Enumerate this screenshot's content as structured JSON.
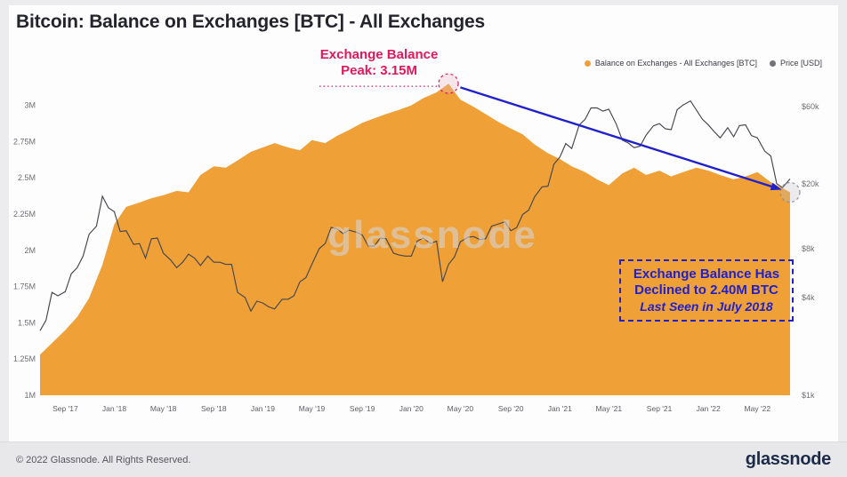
{
  "header": {
    "title": "Bitcoin: Balance on Exchanges [BTC] - All Exchanges"
  },
  "legend": [
    {
      "label": "Balance on Exchanges - All Exchanges [BTC]",
      "color": "#efa137"
    },
    {
      "label": "Price [USD]",
      "color": "#72727c"
    }
  ],
  "watermark": "glassnode",
  "annotations": {
    "peak": {
      "line1": "Exchange Balance",
      "line2": "Peak: 3.15M",
      "x": 2020.25,
      "value_m": 3.15,
      "color": "#e0185c"
    },
    "decline": {
      "line1": "Exchange Balance Has",
      "line2": "Declined to 2.40M BTC",
      "line3": "Last Seen in July 2018",
      "x": 2022.55,
      "value_m": 2.4,
      "color": "#2121cc"
    }
  },
  "footer": {
    "copyright": "© 2022 Glassnode. All Rights Reserved.",
    "logo": "glassnode"
  },
  "chart_data": {
    "type": "area+line",
    "title": "Bitcoin: Balance on Exchanges [BTC] - All Exchanges",
    "grid": false,
    "legend_position": "top-right",
    "x_range": [
      2017.5,
      2022.58
    ],
    "x_ticks": [
      {
        "label": "Sep '17",
        "x": 2017.67
      },
      {
        "label": "Jan '18",
        "x": 2018.0
      },
      {
        "label": "May '18",
        "x": 2018.33
      },
      {
        "label": "Sep '18",
        "x": 2018.67
      },
      {
        "label": "Jan '19",
        "x": 2019.0
      },
      {
        "label": "May '19",
        "x": 2019.33
      },
      {
        "label": "Sep '19",
        "x": 2019.67
      },
      {
        "label": "Jan '20",
        "x": 2020.0
      },
      {
        "label": "May '20",
        "x": 2020.33
      },
      {
        "label": "Sep '20",
        "x": 2020.67
      },
      {
        "label": "Jan '21",
        "x": 2021.0
      },
      {
        "label": "May '21",
        "x": 2021.33
      },
      {
        "label": "Sep '21",
        "x": 2021.67
      },
      {
        "label": "Jan '22",
        "x": 2022.0
      },
      {
        "label": "May '22",
        "x": 2022.33
      }
    ],
    "left_axis": {
      "unit": "M BTC",
      "min_m": 1.0,
      "max_m": 3.2,
      "ticks": [
        {
          "label": "3M",
          "value_m": 3.0
        },
        {
          "label": "2.75M",
          "value_m": 2.75
        },
        {
          "label": "2.5M",
          "value_m": 2.5
        },
        {
          "label": "2.25M",
          "value_m": 2.25
        },
        {
          "label": "2M",
          "value_m": 2.0
        },
        {
          "label": "1.75M",
          "value_m": 1.75
        },
        {
          "label": "1.5M",
          "value_m": 1.5
        },
        {
          "label": "1.25M",
          "value_m": 1.25
        },
        {
          "label": "1M",
          "value_m": 1.0
        }
      ]
    },
    "right_axis": {
      "unit": "USD",
      "scale": "log",
      "min": 1000,
      "max": 92000,
      "ticks": [
        {
          "label": "$60k",
          "value": 60000
        },
        {
          "label": "$20k",
          "value": 20000
        },
        {
          "label": "$8k",
          "value": 8000
        },
        {
          "label": "$4k",
          "value": 4000
        },
        {
          "label": "$1k",
          "value": 1000
        }
      ]
    },
    "series": [
      {
        "name": "Balance on Exchanges - All Exchanges [BTC]",
        "type": "area",
        "axis": "left",
        "color": "#efa137",
        "unit": "M BTC",
        "points": [
          [
            2017.5,
            1.28
          ],
          [
            2017.58,
            1.36
          ],
          [
            2017.67,
            1.45
          ],
          [
            2017.75,
            1.54
          ],
          [
            2017.83,
            1.67
          ],
          [
            2017.92,
            1.9
          ],
          [
            2018.0,
            2.18
          ],
          [
            2018.08,
            2.3
          ],
          [
            2018.17,
            2.33
          ],
          [
            2018.25,
            2.36
          ],
          [
            2018.33,
            2.38
          ],
          [
            2018.42,
            2.41
          ],
          [
            2018.5,
            2.4
          ],
          [
            2018.58,
            2.52
          ],
          [
            2018.67,
            2.58
          ],
          [
            2018.75,
            2.57
          ],
          [
            2018.83,
            2.62
          ],
          [
            2018.92,
            2.68
          ],
          [
            2019.0,
            2.71
          ],
          [
            2019.08,
            2.74
          ],
          [
            2019.17,
            2.71
          ],
          [
            2019.25,
            2.69
          ],
          [
            2019.33,
            2.76
          ],
          [
            2019.42,
            2.74
          ],
          [
            2019.5,
            2.79
          ],
          [
            2019.58,
            2.83
          ],
          [
            2019.67,
            2.88
          ],
          [
            2019.75,
            2.91
          ],
          [
            2019.83,
            2.94
          ],
          [
            2019.92,
            2.97
          ],
          [
            2020.0,
            3.0
          ],
          [
            2020.08,
            3.05
          ],
          [
            2020.17,
            3.09
          ],
          [
            2020.25,
            3.15
          ],
          [
            2020.33,
            3.04
          ],
          [
            2020.42,
            2.99
          ],
          [
            2020.5,
            2.94
          ],
          [
            2020.58,
            2.89
          ],
          [
            2020.67,
            2.84
          ],
          [
            2020.75,
            2.8
          ],
          [
            2020.83,
            2.73
          ],
          [
            2020.92,
            2.67
          ],
          [
            2021.0,
            2.63
          ],
          [
            2021.08,
            2.58
          ],
          [
            2021.17,
            2.54
          ],
          [
            2021.25,
            2.49
          ],
          [
            2021.33,
            2.45
          ],
          [
            2021.42,
            2.53
          ],
          [
            2021.5,
            2.57
          ],
          [
            2021.58,
            2.52
          ],
          [
            2021.67,
            2.55
          ],
          [
            2021.75,
            2.51
          ],
          [
            2021.83,
            2.54
          ],
          [
            2021.92,
            2.57
          ],
          [
            2022.0,
            2.55
          ],
          [
            2022.08,
            2.52
          ],
          [
            2022.17,
            2.49
          ],
          [
            2022.25,
            2.51
          ],
          [
            2022.33,
            2.54
          ],
          [
            2022.42,
            2.47
          ],
          [
            2022.5,
            2.43
          ],
          [
            2022.55,
            2.4
          ]
        ]
      },
      {
        "name": "Price [USD]",
        "type": "line",
        "axis": "right",
        "color": "#46464e",
        "unit": "USD",
        "points": [
          [
            2017.5,
            2500
          ],
          [
            2017.54,
            2900
          ],
          [
            2017.58,
            4300
          ],
          [
            2017.62,
            4100
          ],
          [
            2017.67,
            4350
          ],
          [
            2017.71,
            5600
          ],
          [
            2017.75,
            6100
          ],
          [
            2017.79,
            7200
          ],
          [
            2017.83,
            9800
          ],
          [
            2017.88,
            11000
          ],
          [
            2017.92,
            16800
          ],
          [
            2017.96,
            14300
          ],
          [
            2018.0,
            13500
          ],
          [
            2018.04,
            10200
          ],
          [
            2018.08,
            10300
          ],
          [
            2018.13,
            8500
          ],
          [
            2018.17,
            8600
          ],
          [
            2018.21,
            7000
          ],
          [
            2018.25,
            9200
          ],
          [
            2018.29,
            9300
          ],
          [
            2018.33,
            7500
          ],
          [
            2018.38,
            6800
          ],
          [
            2018.42,
            6100
          ],
          [
            2018.46,
            6600
          ],
          [
            2018.5,
            7400
          ],
          [
            2018.54,
            7000
          ],
          [
            2018.58,
            6300
          ],
          [
            2018.63,
            7200
          ],
          [
            2018.67,
            6600
          ],
          [
            2018.71,
            6600
          ],
          [
            2018.75,
            6400
          ],
          [
            2018.79,
            6400
          ],
          [
            2018.83,
            4300
          ],
          [
            2018.88,
            4000
          ],
          [
            2018.92,
            3300
          ],
          [
            2018.96,
            3800
          ],
          [
            2019.0,
            3700
          ],
          [
            2019.04,
            3500
          ],
          [
            2019.08,
            3400
          ],
          [
            2019.13,
            3900
          ],
          [
            2019.17,
            3900
          ],
          [
            2019.21,
            4100
          ],
          [
            2019.25,
            5000
          ],
          [
            2019.29,
            5300
          ],
          [
            2019.33,
            6400
          ],
          [
            2019.38,
            8000
          ],
          [
            2019.42,
            8600
          ],
          [
            2019.46,
            10800
          ],
          [
            2019.5,
            10600
          ],
          [
            2019.54,
            9900
          ],
          [
            2019.58,
            10400
          ],
          [
            2019.63,
            10100
          ],
          [
            2019.67,
            9700
          ],
          [
            2019.71,
            8300
          ],
          [
            2019.75,
            8300
          ],
          [
            2019.79,
            9300
          ],
          [
            2019.83,
            9200
          ],
          [
            2019.88,
            7500
          ],
          [
            2019.92,
            7300
          ],
          [
            2019.96,
            7200
          ],
          [
            2020.0,
            7200
          ],
          [
            2020.04,
            8900
          ],
          [
            2020.08,
            9300
          ],
          [
            2020.13,
            8600
          ],
          [
            2020.17,
            8900
          ],
          [
            2020.21,
            5000
          ],
          [
            2020.25,
            6400
          ],
          [
            2020.29,
            7100
          ],
          [
            2020.33,
            8800
          ],
          [
            2020.38,
            9400
          ],
          [
            2020.42,
            9500
          ],
          [
            2020.46,
            9100
          ],
          [
            2020.5,
            9200
          ],
          [
            2020.54,
            11000
          ],
          [
            2020.58,
            11300
          ],
          [
            2020.63,
            11700
          ],
          [
            2020.67,
            10300
          ],
          [
            2020.71,
            10800
          ],
          [
            2020.75,
            13000
          ],
          [
            2020.79,
            13800
          ],
          [
            2020.83,
            16700
          ],
          [
            2020.88,
            19200
          ],
          [
            2020.92,
            19400
          ],
          [
            2020.96,
            26500
          ],
          [
            2021.0,
            29300
          ],
          [
            2021.04,
            35500
          ],
          [
            2021.08,
            33100
          ],
          [
            2021.13,
            46200
          ],
          [
            2021.17,
            50000
          ],
          [
            2021.21,
            58900
          ],
          [
            2021.25,
            58800
          ],
          [
            2021.29,
            56200
          ],
          [
            2021.33,
            57800
          ],
          [
            2021.38,
            46700
          ],
          [
            2021.42,
            37300
          ],
          [
            2021.46,
            35800
          ],
          [
            2021.5,
            33500
          ],
          [
            2021.54,
            34200
          ],
          [
            2021.58,
            39900
          ],
          [
            2021.63,
            45600
          ],
          [
            2021.67,
            47100
          ],
          [
            2021.71,
            43800
          ],
          [
            2021.75,
            43200
          ],
          [
            2021.79,
            57400
          ],
          [
            2021.83,
            61300
          ],
          [
            2021.88,
            65000
          ],
          [
            2021.92,
            57000
          ],
          [
            2021.96,
            50100
          ],
          [
            2022.0,
            46200
          ],
          [
            2022.04,
            41900
          ],
          [
            2022.08,
            38500
          ],
          [
            2022.13,
            44400
          ],
          [
            2022.17,
            39100
          ],
          [
            2022.21,
            45800
          ],
          [
            2022.25,
            46300
          ],
          [
            2022.29,
            39700
          ],
          [
            2022.33,
            38500
          ],
          [
            2022.38,
            31800
          ],
          [
            2022.42,
            29800
          ],
          [
            2022.46,
            20100
          ],
          [
            2022.5,
            19000
          ],
          [
            2022.55,
            21500
          ]
        ]
      }
    ]
  }
}
